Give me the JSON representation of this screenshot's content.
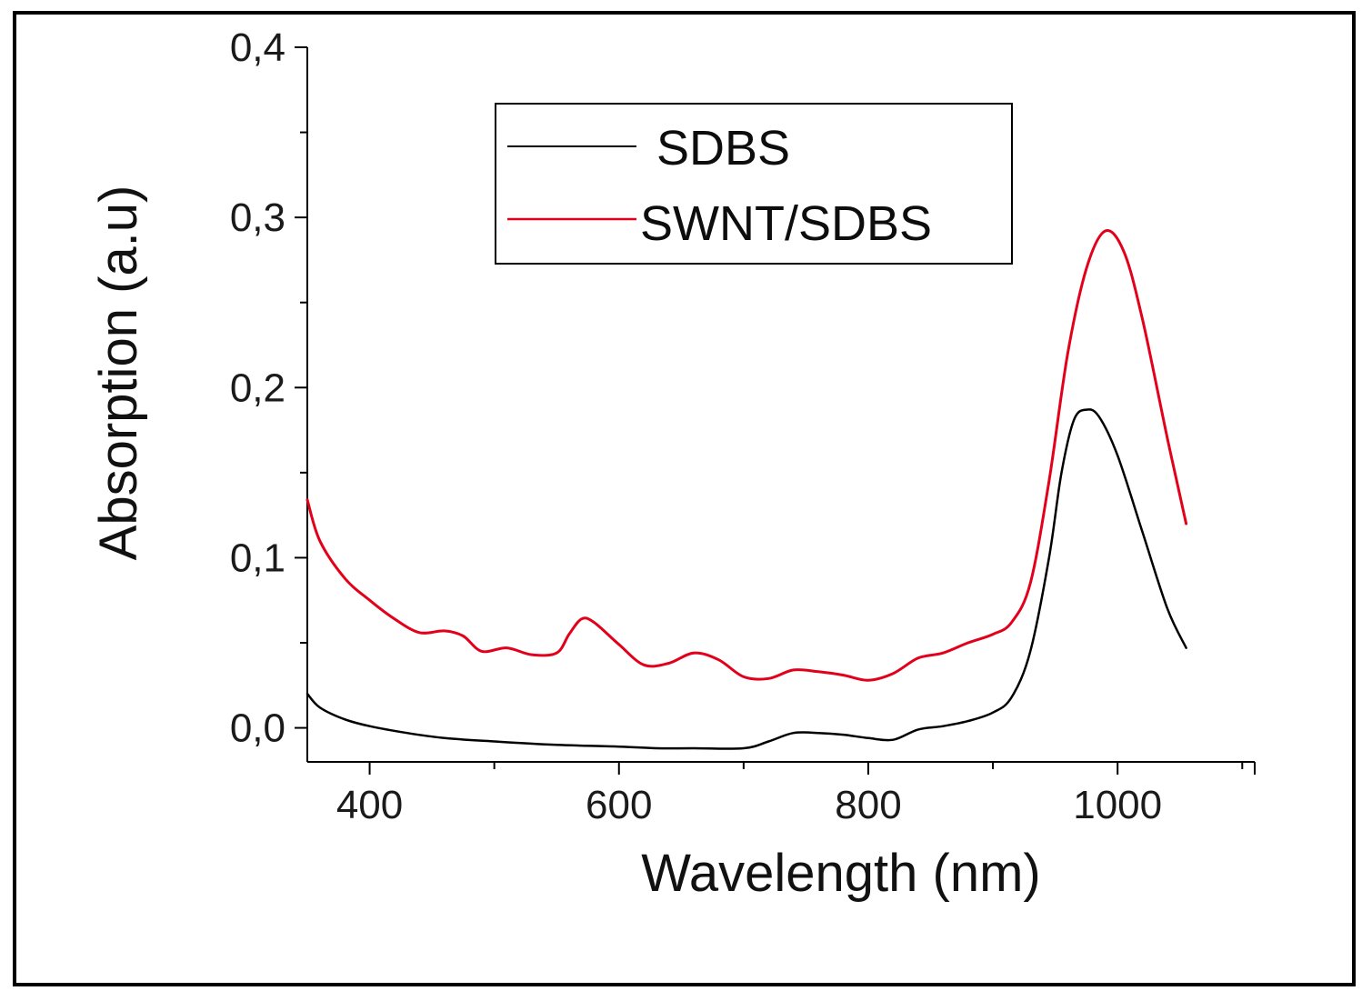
{
  "chart_data": {
    "type": "line",
    "title": "",
    "xlabel": "Wavelength (nm)",
    "ylabel": "Absorption (a.u)",
    "xlim": [
      350,
      1110
    ],
    "ylim": [
      -0.02,
      0.4
    ],
    "xticks": [
      400,
      600,
      800,
      1000
    ],
    "xtick_labels": [
      "400",
      "600",
      "800",
      "1000"
    ],
    "yticks": [
      0.0,
      0.1,
      0.2,
      0.3,
      0.4
    ],
    "ytick_labels": [
      "0,0",
      "0,1",
      "0,2",
      "0,3",
      "0,4"
    ],
    "grid": false,
    "legend_position": "top-center",
    "series": [
      {
        "name": "SDBS",
        "color": "#000000",
        "x": [
          350,
          360,
          380,
          400,
          430,
          460,
          500,
          550,
          600,
          630,
          660,
          700,
          720,
          740,
          760,
          780,
          800,
          820,
          840,
          860,
          880,
          900,
          915,
          930,
          945,
          955,
          965,
          975,
          985,
          1000,
          1020,
          1040,
          1055
        ],
        "y": [
          0.02,
          0.012,
          0.005,
          0.001,
          -0.003,
          -0.006,
          -0.008,
          -0.01,
          -0.011,
          -0.012,
          -0.012,
          -0.012,
          -0.008,
          -0.003,
          -0.003,
          -0.004,
          -0.006,
          -0.007,
          -0.001,
          0.001,
          0.004,
          0.009,
          0.018,
          0.045,
          0.1,
          0.15,
          0.181,
          0.187,
          0.183,
          0.16,
          0.115,
          0.07,
          0.047
        ]
      },
      {
        "name": "SWNT/SDBS",
        "color": "#e3001b",
        "x": [
          350,
          360,
          380,
          400,
          420,
          440,
          460,
          475,
          490,
          510,
          530,
          550,
          560,
          570,
          580,
          600,
          620,
          640,
          660,
          680,
          700,
          720,
          740,
          760,
          780,
          800,
          820,
          840,
          860,
          880,
          900,
          915,
          930,
          945,
          960,
          975,
          990,
          1005,
          1020,
          1040,
          1055
        ],
        "y": [
          0.134,
          0.11,
          0.088,
          0.075,
          0.064,
          0.056,
          0.057,
          0.054,
          0.045,
          0.047,
          0.043,
          0.044,
          0.055,
          0.064,
          0.062,
          0.049,
          0.037,
          0.038,
          0.044,
          0.04,
          0.03,
          0.029,
          0.034,
          0.033,
          0.031,
          0.028,
          0.032,
          0.041,
          0.044,
          0.05,
          0.055,
          0.062,
          0.085,
          0.145,
          0.22,
          0.27,
          0.292,
          0.28,
          0.24,
          0.17,
          0.12
        ]
      }
    ]
  }
}
